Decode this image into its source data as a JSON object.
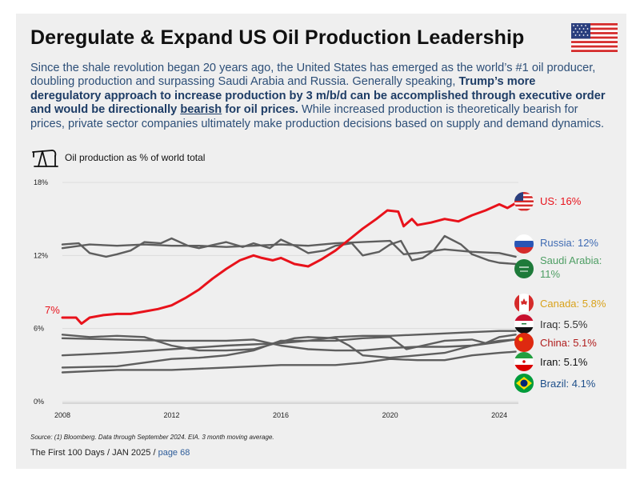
{
  "title": "Deregulate & Expand US Oil Production Leadership",
  "intro": {
    "part1": "Since the shale revolution began 20 years ago, the United States has emerged as the world’s #1 oil producer, doubling production and surpassing Saudi Arabia and Russia. Generally speaking, ",
    "bold1": "Trump’s more deregulatory approach to increase production by 3 m/b/d can be accomplished through executive order and would be directionally ",
    "underline": "bearish",
    "bold2": " for oil prices.",
    "part2": " While increased production is theoretically bearish for prices, private sector companies ultimately make production decisions based on supply and demand dynamics."
  },
  "chart_subtitle": "Oil production as % of world total",
  "source_note": "Source: (1) Bloomberg. Data through September 2024. EIA. 3 month moving average.",
  "footer": {
    "text": "The First 100 Days / JAN 2025 / ",
    "page": "page 68"
  },
  "colors": {
    "us": "#e8121b",
    "other": "#5e5e5e",
    "russia": "#3f6bb3",
    "saudi": "#4e9e64",
    "canada": "#d9a21b",
    "china": "#b01c1c",
    "brazil": "#1e4f8a"
  },
  "chart_data": {
    "type": "line",
    "title": "Oil production as % of world total",
    "xlabel": "",
    "ylabel": "",
    "xlim": [
      2008,
      2024.7
    ],
    "ylim": [
      0,
      18
    ],
    "x_ticks": [
      2008,
      2012,
      2016,
      2020,
      2024
    ],
    "y_ticks": [
      0,
      6,
      12,
      18
    ],
    "y_tick_labels": [
      "0%",
      "6%",
      "12%",
      "18%"
    ],
    "start_annotation": "7%",
    "series": [
      {
        "name": "US",
        "label": "US: 16%",
        "color": "#e8121b",
        "icon": "us-flag-icon",
        "x": [
          2008,
          2008.5,
          2008.7,
          2009,
          2009.5,
          2010,
          2010.5,
          2011,
          2011.5,
          2012,
          2012.5,
          2013,
          2013.5,
          2014,
          2014.5,
          2015,
          2015.3,
          2015.7,
          2016,
          2016.5,
          2017,
          2017.5,
          2018,
          2018.5,
          2019,
          2019.5,
          2019.9,
          2020.3,
          2020.5,
          2020.8,
          2021,
          2021.5,
          2022,
          2022.5,
          2023,
          2023.5,
          2024,
          2024.3,
          2024.6
        ],
        "values": [
          6.9,
          6.9,
          6.4,
          6.9,
          7.1,
          7.2,
          7.2,
          7.4,
          7.6,
          7.9,
          8.5,
          9.2,
          10.1,
          10.9,
          11.6,
          12.0,
          11.8,
          11.6,
          11.8,
          11.3,
          11.1,
          11.7,
          12.4,
          13.3,
          14.2,
          15.0,
          15.7,
          15.6,
          14.4,
          15.0,
          14.5,
          14.7,
          15.0,
          14.8,
          15.3,
          15.7,
          16.2,
          15.9,
          16.3
        ]
      },
      {
        "name": "Russia",
        "label": "Russia: 12%",
        "color": "#5e5e5e",
        "icon": "russia-flag-icon",
        "x": [
          2008,
          2009,
          2010,
          2011,
          2012,
          2013,
          2014,
          2015,
          2016,
          2017,
          2018,
          2019,
          2020,
          2020.5,
          2021,
          2022,
          2023,
          2024,
          2024.6
        ],
        "values": [
          12.6,
          12.9,
          12.8,
          12.9,
          12.8,
          12.8,
          12.7,
          12.8,
          12.9,
          12.8,
          13.0,
          13.1,
          13.2,
          12.1,
          12.2,
          12.5,
          12.3,
          12.2,
          11.9
        ]
      },
      {
        "name": "Saudi Arabia",
        "label": "Saudi Arabia: 11%",
        "color": "#5e5e5e",
        "icon": "saudi-flag-icon",
        "x": [
          2008,
          2008.6,
          2009,
          2009.6,
          2010,
          2010.5,
          2011,
          2011.6,
          2012,
          2012.6,
          2013,
          2013.6,
          2014,
          2014.6,
          2015,
          2015.6,
          2016,
          2016.6,
          2017,
          2017.6,
          2018,
          2018.6,
          2019,
          2019.6,
          2020,
          2020.4,
          2020.8,
          2021.2,
          2021.6,
          2022,
          2022.6,
          2023,
          2023.6,
          2024,
          2024.6
        ],
        "values": [
          12.9,
          13.0,
          12.2,
          11.9,
          12.1,
          12.4,
          13.1,
          13.0,
          13.4,
          12.8,
          12.6,
          12.9,
          13.1,
          12.7,
          13.0,
          12.6,
          13.3,
          12.7,
          12.2,
          12.4,
          12.8,
          13.0,
          12.0,
          12.3,
          12.9,
          13.2,
          11.6,
          11.8,
          12.4,
          13.6,
          12.9,
          12.1,
          11.6,
          11.4,
          11.3
        ]
      },
      {
        "name": "Canada",
        "label": "Canada: 5.8%",
        "color": "#5e5e5e",
        "icon": "canada-flag-icon",
        "x": [
          2008,
          2010,
          2012,
          2014,
          2016,
          2017,
          2018,
          2019,
          2020,
          2021,
          2022,
          2023,
          2024,
          2024.6
        ],
        "values": [
          3.8,
          4.0,
          4.3,
          4.6,
          4.8,
          5.0,
          5.3,
          5.4,
          5.4,
          5.5,
          5.6,
          5.7,
          5.8,
          5.8
        ]
      },
      {
        "name": "Iraq",
        "label": "Iraq: 5.5%",
        "color": "#5e5e5e",
        "icon": "iraq-flag-icon",
        "x": [
          2008,
          2010,
          2012,
          2013,
          2014,
          2015,
          2016,
          2017,
          2018,
          2019,
          2020,
          2020.6,
          2021,
          2022,
          2023,
          2023.5,
          2024,
          2024.6
        ],
        "values": [
          2.8,
          2.9,
          3.5,
          3.6,
          3.8,
          4.2,
          5.0,
          5.0,
          5.0,
          5.2,
          5.3,
          4.3,
          4.5,
          5.0,
          5.1,
          4.8,
          5.3,
          5.5
        ]
      },
      {
        "name": "China",
        "label": "China: 5.1%",
        "color": "#5e5e5e",
        "icon": "china-flag-icon",
        "x": [
          2008,
          2010,
          2012,
          2014,
          2015,
          2016,
          2017,
          2018,
          2019,
          2020,
          2021,
          2022,
          2023,
          2024,
          2024.6
        ],
        "values": [
          5.2,
          5.1,
          5.0,
          5.0,
          5.1,
          4.6,
          4.3,
          4.2,
          4.2,
          4.4,
          4.5,
          4.5,
          4.6,
          4.9,
          5.1
        ]
      },
      {
        "name": "Iran",
        "label": "Iran: 5.1%",
        "color": "#5e5e5e",
        "icon": "iran-flag-icon",
        "x": [
          2008,
          2009,
          2010,
          2011,
          2012,
          2013,
          2014,
          2015,
          2016,
          2016.5,
          2017,
          2018,
          2018.5,
          2019,
          2020,
          2021,
          2022,
          2023,
          2024,
          2024.6
        ],
        "values": [
          5.5,
          5.3,
          5.4,
          5.3,
          4.6,
          4.2,
          4.2,
          4.3,
          4.9,
          5.2,
          5.3,
          5.2,
          4.6,
          3.8,
          3.6,
          3.8,
          4.0,
          4.6,
          5.0,
          5.1
        ]
      },
      {
        "name": "Brazil",
        "label": "Brazil: 4.1%",
        "color": "#5e5e5e",
        "icon": "brazil-flag-icon",
        "x": [
          2008,
          2010,
          2012,
          2014,
          2016,
          2018,
          2019,
          2020,
          2021,
          2022,
          2023,
          2024,
          2024.6
        ],
        "values": [
          2.4,
          2.6,
          2.6,
          2.8,
          3.0,
          3.0,
          3.2,
          3.5,
          3.4,
          3.4,
          3.8,
          4.0,
          4.1
        ]
      }
    ]
  }
}
